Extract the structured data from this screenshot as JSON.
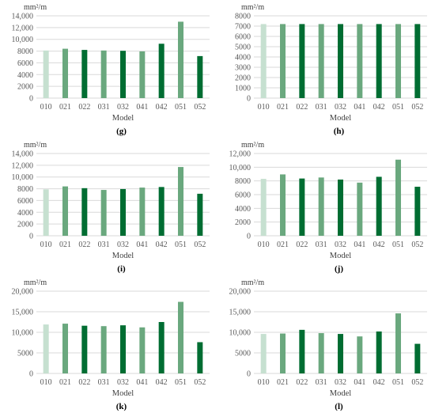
{
  "colors": {
    "light": "#c6e0d0",
    "medium": "#6aa87e",
    "dark": "#006d32"
  },
  "chart_data": [
    {
      "type": "bar",
      "letter": "(g)",
      "unit": "mm²/m",
      "xlabel": "Model",
      "categories": [
        "010",
        "021",
        "022",
        "031",
        "032",
        "041",
        "042",
        "051",
        "052"
      ],
      "values": [
        8100,
        8400,
        8200,
        8100,
        8050,
        7950,
        9250,
        13000,
        7150
      ],
      "shades": [
        "light",
        "medium",
        "dark",
        "medium",
        "dark",
        "medium",
        "dark",
        "medium",
        "dark"
      ],
      "ylim": [
        0,
        14000
      ],
      "yticks": [
        "0",
        "2000",
        "4000",
        "6000",
        "8000",
        "10,000",
        "12,000",
        "14,000"
      ],
      "grid": true
    },
    {
      "type": "bar",
      "letter": "(h)",
      "unit": "mm²/m",
      "xlabel": "Model",
      "categories": [
        "010",
        "021",
        "022",
        "031",
        "032",
        "041",
        "042",
        "051",
        "052"
      ],
      "values": [
        7200,
        7200,
        7200,
        7200,
        7200,
        7200,
        7200,
        7200,
        7200
      ],
      "shades": [
        "light",
        "medium",
        "dark",
        "medium",
        "dark",
        "medium",
        "dark",
        "medium",
        "dark"
      ],
      "ylim": [
        0,
        8000
      ],
      "yticks": [
        "0",
        "1000",
        "2000",
        "3000",
        "4000",
        "5000",
        "6000",
        "7000",
        "8000"
      ],
      "grid": true
    },
    {
      "type": "bar",
      "letter": "(i)",
      "unit": "mm²/m",
      "xlabel": "Model",
      "categories": [
        "010",
        "021",
        "022",
        "031",
        "032",
        "041",
        "042",
        "051",
        "052"
      ],
      "values": [
        7900,
        8400,
        8100,
        7800,
        7950,
        8200,
        8300,
        11700,
        7150
      ],
      "shades": [
        "light",
        "medium",
        "dark",
        "medium",
        "dark",
        "medium",
        "dark",
        "medium",
        "dark"
      ],
      "ylim": [
        0,
        14000
      ],
      "yticks": [
        "0",
        "2000",
        "4000",
        "6000",
        "8000",
        "10,000",
        "12,000",
        "14,000"
      ],
      "grid": true
    },
    {
      "type": "bar",
      "letter": "(j)",
      "unit": "mm²/m",
      "xlabel": "Model",
      "categories": [
        "010",
        "021",
        "022",
        "031",
        "032",
        "041",
        "042",
        "051",
        "052"
      ],
      "values": [
        8300,
        8950,
        8350,
        8500,
        8200,
        7750,
        8600,
        11100,
        7150
      ],
      "shades": [
        "light",
        "medium",
        "dark",
        "medium",
        "dark",
        "medium",
        "dark",
        "medium",
        "dark"
      ],
      "ylim": [
        0,
        12000
      ],
      "yticks": [
        "0",
        "2000",
        "4000",
        "6000",
        "8000",
        "10,000",
        "12,000"
      ],
      "grid": true
    },
    {
      "type": "bar",
      "letter": "(k)",
      "unit": "mm²/m",
      "xlabel": "Model",
      "categories": [
        "010",
        "021",
        "022",
        "031",
        "032",
        "041",
        "042",
        "051",
        "052"
      ],
      "values": [
        11900,
        12100,
        11600,
        11500,
        11700,
        11200,
        12500,
        17400,
        7600
      ],
      "shades": [
        "light",
        "medium",
        "dark",
        "medium",
        "dark",
        "medium",
        "dark",
        "medium",
        "dark"
      ],
      "ylim": [
        0,
        20000
      ],
      "yticks": [
        "0",
        "5000",
        "10,000",
        "15,000",
        "20,000"
      ],
      "grid": true
    },
    {
      "type": "bar",
      "letter": "(l)",
      "unit": "mm²/m",
      "xlabel": "Model",
      "categories": [
        "010",
        "021",
        "022",
        "031",
        "032",
        "041",
        "042",
        "051",
        "052"
      ],
      "values": [
        9600,
        9700,
        10600,
        9800,
        9600,
        9000,
        10200,
        14600,
        7200
      ],
      "shades": [
        "light",
        "medium",
        "dark",
        "medium",
        "dark",
        "medium",
        "dark",
        "medium",
        "dark"
      ],
      "ylim": [
        0,
        20000
      ],
      "yticks": [
        "0",
        "5000",
        "10,000",
        "15,000",
        "20,000"
      ],
      "grid": true
    }
  ]
}
